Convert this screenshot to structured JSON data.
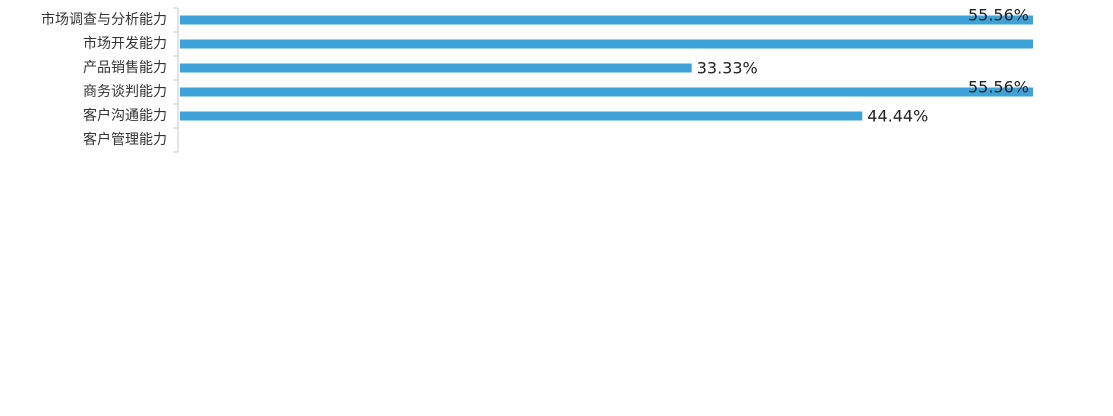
{
  "chart_data": {
    "type": "bar",
    "orientation": "horizontal",
    "categories": [
      "市场调查与分析能力",
      "市场开发能力",
      "产品销售能力",
      "商务谈判能力",
      "客户沟通能力",
      "客户管理能力"
    ],
    "values": [
      55.56,
      55.56,
      33.33,
      55.56,
      44.44,
      null
    ],
    "value_labels": [
      "55.56%",
      "",
      "33.33%",
      "55.56%",
      "44.44%",
      ""
    ],
    "title": "",
    "xlabel": "",
    "ylabel": "",
    "xlim": [
      0,
      55.56
    ],
    "grid": false,
    "legend": "none",
    "colors": {
      "bar": "#3ea1d8"
    }
  }
}
